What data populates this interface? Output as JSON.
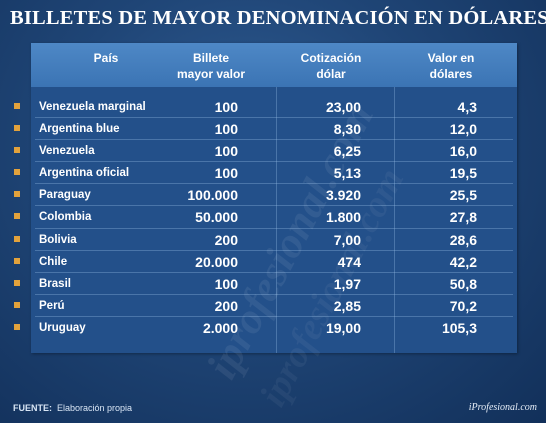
{
  "title": "BILLETES DE MAYOR DENOMINACIÓN EN DÓLARES",
  "headers": {
    "country": "País",
    "bill_line1": "Billete",
    "bill_line2": "mayor valor",
    "rate_line1": "Cotización",
    "rate_line2": "dólar",
    "usd_line1": "Valor en",
    "usd_line2": "dólares"
  },
  "rows": [
    {
      "country": "Venezuela marginal",
      "bill": "100",
      "rate": "23,00",
      "usd": "4,3"
    },
    {
      "country": "Argentina blue",
      "bill": "100",
      "rate": "8,30",
      "usd": "12,0"
    },
    {
      "country": "Venezuela",
      "bill": "100",
      "rate": "6,25",
      "usd": "16,0"
    },
    {
      "country": "Argentina oficial",
      "bill": "100",
      "rate": "5,13",
      "usd": "19,5"
    },
    {
      "country": "Paraguay",
      "bill": "100.000",
      "rate": "3.920",
      "usd": "25,5"
    },
    {
      "country": "Colombia",
      "bill": "50.000",
      "rate": "1.800",
      "usd": "27,8"
    },
    {
      "country": "Bolivia",
      "bill": "200",
      "rate": "7,00",
      "usd": "28,6"
    },
    {
      "country": "Chile",
      "bill": "20.000",
      "rate": "474",
      "usd": "42,2"
    },
    {
      "country": "Brasil",
      "bill": "100",
      "rate": "1,97",
      "usd": "50,8"
    },
    {
      "country": "Perú",
      "bill": "200",
      "rate": "2,85",
      "usd": "70,2"
    },
    {
      "country": "Uruguay",
      "bill": "2.000",
      "rate": "19,00",
      "usd": "105,3"
    }
  ],
  "footer": {
    "source_label": "FUENTE:",
    "source_text": "Elaboración propia",
    "brand": "iProfesional.com"
  },
  "watermark": "iprofesional.com",
  "colors": {
    "background": "#1f4576",
    "header": "#4e88c6",
    "bullet": "#e2a23c",
    "text": "#ffffff"
  }
}
